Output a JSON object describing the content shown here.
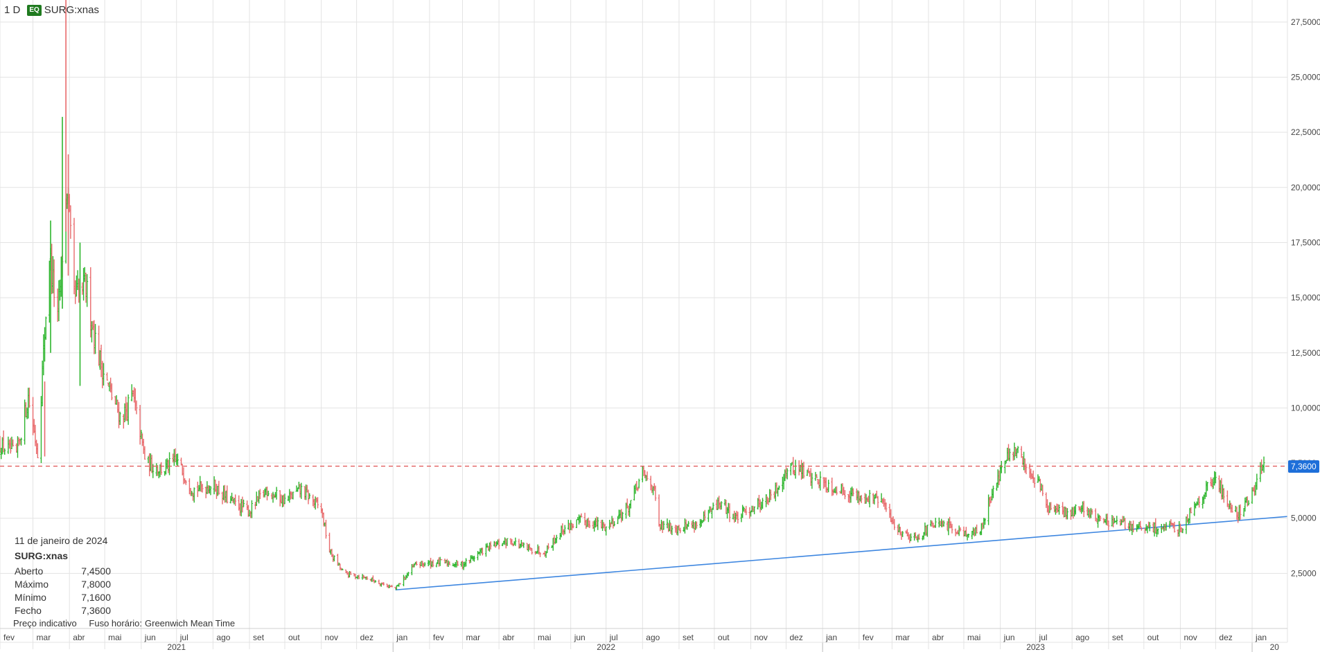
{
  "header": {
    "interval": "1 D",
    "badge": "EQ",
    "symbol": "SURG:xnas"
  },
  "info": {
    "date": "11 de janeiro de 2024",
    "symbol": "SURG:xnas",
    "rows": [
      {
        "label": "Aberto",
        "value": "7,4500"
      },
      {
        "label": "Máximo",
        "value": "7,8000"
      },
      {
        "label": "Mínimo",
        "value": "7,1600"
      },
      {
        "label": "Fecho",
        "value": "7,3600"
      }
    ]
  },
  "footer": {
    "note": "Preço indicativo",
    "tz_label": "Fuso horário:",
    "tz_value": "Greenwich Mean Time"
  },
  "colors": {
    "up": "#2db52d",
    "down": "#e8696b",
    "trendline": "#3d86e0",
    "lastprice": "#e05252",
    "grid": "#e3e3e3",
    "pricetag": "#1e6fd9"
  },
  "chart_data": {
    "type": "ohlc",
    "ylim": [
      0,
      28.5
    ],
    "yticks": [
      "2,5000",
      "5,0000",
      "7,5000",
      "10,0000",
      "12,5000",
      "15,0000",
      "17,5000",
      "20,0000",
      "22,5000",
      "25,0000",
      "27,5000"
    ],
    "ytick_values": [
      2.5,
      5,
      7.5,
      10,
      12.5,
      15,
      17.5,
      20,
      22.5,
      25,
      27.5
    ],
    "x_start": "2021-02-01",
    "x_end": "2024-01-31",
    "months": [
      {
        "label": "fev",
        "date": "2021-02-01"
      },
      {
        "label": "mar",
        "date": "2021-03-01"
      },
      {
        "label": "abr",
        "date": "2021-04-01"
      },
      {
        "label": "mai",
        "date": "2021-05-01"
      },
      {
        "label": "jun",
        "date": "2021-06-01"
      },
      {
        "label": "jul",
        "date": "2021-07-01"
      },
      {
        "label": "ago",
        "date": "2021-08-01"
      },
      {
        "label": "set",
        "date": "2021-09-01"
      },
      {
        "label": "out",
        "date": "2021-10-01"
      },
      {
        "label": "nov",
        "date": "2021-11-01"
      },
      {
        "label": "dez",
        "date": "2021-12-01"
      },
      {
        "label": "jan",
        "date": "2022-01-01"
      },
      {
        "label": "fev",
        "date": "2022-02-01"
      },
      {
        "label": "mar",
        "date": "2022-03-01"
      },
      {
        "label": "abr",
        "date": "2022-04-01"
      },
      {
        "label": "mai",
        "date": "2022-05-01"
      },
      {
        "label": "jun",
        "date": "2022-06-01"
      },
      {
        "label": "jul",
        "date": "2022-07-01"
      },
      {
        "label": "ago",
        "date": "2022-08-01"
      },
      {
        "label": "set",
        "date": "2022-09-01"
      },
      {
        "label": "out",
        "date": "2022-10-01"
      },
      {
        "label": "nov",
        "date": "2022-11-01"
      },
      {
        "label": "dez",
        "date": "2022-12-01"
      },
      {
        "label": "jan",
        "date": "2023-01-01"
      },
      {
        "label": "fev",
        "date": "2023-02-01"
      },
      {
        "label": "mar",
        "date": "2023-03-01"
      },
      {
        "label": "abr",
        "date": "2023-04-01"
      },
      {
        "label": "mai",
        "date": "2023-05-01"
      },
      {
        "label": "jun",
        "date": "2023-06-01"
      },
      {
        "label": "jul",
        "date": "2023-07-01"
      },
      {
        "label": "ago",
        "date": "2023-08-01"
      },
      {
        "label": "set",
        "date": "2023-09-01"
      },
      {
        "label": "out",
        "date": "2023-10-01"
      },
      {
        "label": "nov",
        "date": "2023-11-01"
      },
      {
        "label": "dez",
        "date": "2023-12-01"
      },
      {
        "label": "jan",
        "date": "2024-01-01"
      }
    ],
    "years": [
      {
        "label": "2021",
        "date": "2021-07-01"
      },
      {
        "label": "2022",
        "date": "2022-07-01"
      },
      {
        "label": "2023",
        "date": "2023-07-01"
      },
      {
        "label": "20",
        "date": "2024-01-20"
      }
    ],
    "year_boundaries": [
      "2022-01-01",
      "2023-01-01",
      "2024-01-01"
    ],
    "last_price": 7.36,
    "last_price_label": "7,3600",
    "trendline": [
      {
        "date": "2022-01-03",
        "value": 1.75
      },
      {
        "date": "2024-01-31",
        "value": 5.08
      }
    ],
    "price_path": [
      {
        "date": "2021-02-01",
        "value": 8.3
      },
      {
        "date": "2021-02-15",
        "value": 7.9
      },
      {
        "date": "2021-02-25",
        "value": 10.5
      },
      {
        "date": "2021-03-05",
        "value": 8.0
      },
      {
        "date": "2021-03-15",
        "value": 17.0
      },
      {
        "date": "2021-03-22",
        "value": 14.0
      },
      {
        "date": "2021-03-30",
        "value": 20.0
      },
      {
        "date": "2021-04-05",
        "value": 15.0
      },
      {
        "date": "2021-04-15",
        "value": 15.5
      },
      {
        "date": "2021-04-25",
        "value": 12.5
      },
      {
        "date": "2021-05-05",
        "value": 10.8
      },
      {
        "date": "2021-05-15",
        "value": 9.5
      },
      {
        "date": "2021-05-25",
        "value": 10.5
      },
      {
        "date": "2021-06-05",
        "value": 7.5
      },
      {
        "date": "2021-06-20",
        "value": 7.2
      },
      {
        "date": "2021-07-01",
        "value": 7.6
      },
      {
        "date": "2021-07-15",
        "value": 6.3
      },
      {
        "date": "2021-08-01",
        "value": 6.5
      },
      {
        "date": "2021-08-15",
        "value": 5.8
      },
      {
        "date": "2021-09-01",
        "value": 5.3
      },
      {
        "date": "2021-09-15",
        "value": 6.3
      },
      {
        "date": "2021-10-01",
        "value": 5.8
      },
      {
        "date": "2021-10-15",
        "value": 6.3
      },
      {
        "date": "2021-11-01",
        "value": 5.4
      },
      {
        "date": "2021-11-08",
        "value": 3.5
      },
      {
        "date": "2021-11-20",
        "value": 2.5
      },
      {
        "date": "2021-12-10",
        "value": 2.3
      },
      {
        "date": "2022-01-03",
        "value": 1.8
      },
      {
        "date": "2022-01-20",
        "value": 2.9
      },
      {
        "date": "2022-02-10",
        "value": 3.0
      },
      {
        "date": "2022-03-01",
        "value": 2.9
      },
      {
        "date": "2022-03-20",
        "value": 3.6
      },
      {
        "date": "2022-04-10",
        "value": 4.0
      },
      {
        "date": "2022-04-25",
        "value": 3.6
      },
      {
        "date": "2022-05-10",
        "value": 3.5
      },
      {
        "date": "2022-05-25",
        "value": 4.5
      },
      {
        "date": "2022-06-10",
        "value": 4.9
      },
      {
        "date": "2022-07-01",
        "value": 4.6
      },
      {
        "date": "2022-07-20",
        "value": 5.5
      },
      {
        "date": "2022-08-01",
        "value": 7.0
      },
      {
        "date": "2022-08-10",
        "value": 6.5
      },
      {
        "date": "2022-08-15",
        "value": 4.6
      },
      {
        "date": "2022-09-01",
        "value": 4.6
      },
      {
        "date": "2022-09-20",
        "value": 4.8
      },
      {
        "date": "2022-10-05",
        "value": 5.7
      },
      {
        "date": "2022-10-20",
        "value": 5.0
      },
      {
        "date": "2022-11-05",
        "value": 5.6
      },
      {
        "date": "2022-11-20",
        "value": 6.0
      },
      {
        "date": "2022-12-01",
        "value": 7.2
      },
      {
        "date": "2022-12-10",
        "value": 7.3
      },
      {
        "date": "2022-12-25",
        "value": 6.8
      },
      {
        "date": "2023-01-10",
        "value": 6.4
      },
      {
        "date": "2023-02-01",
        "value": 6.0
      },
      {
        "date": "2023-02-20",
        "value": 5.8
      },
      {
        "date": "2023-03-05",
        "value": 4.5
      },
      {
        "date": "2023-03-20",
        "value": 4.1
      },
      {
        "date": "2023-04-05",
        "value": 4.7
      },
      {
        "date": "2023-04-20",
        "value": 4.6
      },
      {
        "date": "2023-05-05",
        "value": 4.3
      },
      {
        "date": "2023-05-15",
        "value": 4.4
      },
      {
        "date": "2023-05-25",
        "value": 6.2
      },
      {
        "date": "2023-06-05",
        "value": 7.6
      },
      {
        "date": "2023-06-15",
        "value": 8.0
      },
      {
        "date": "2023-06-25",
        "value": 7.2
      },
      {
        "date": "2023-07-05",
        "value": 6.5
      },
      {
        "date": "2023-07-10",
        "value": 5.5
      },
      {
        "date": "2023-07-25",
        "value": 5.2
      },
      {
        "date": "2023-08-10",
        "value": 5.5
      },
      {
        "date": "2023-08-25",
        "value": 4.9
      },
      {
        "date": "2023-09-15",
        "value": 4.7
      },
      {
        "date": "2023-10-01",
        "value": 4.5
      },
      {
        "date": "2023-10-20",
        "value": 4.6
      },
      {
        "date": "2023-11-01",
        "value": 4.5
      },
      {
        "date": "2023-11-15",
        "value": 5.8
      },
      {
        "date": "2023-12-01",
        "value": 6.8
      },
      {
        "date": "2023-12-10",
        "value": 5.8
      },
      {
        "date": "2023-12-20",
        "value": 5.2
      },
      {
        "date": "2024-01-01",
        "value": 6.0
      },
      {
        "date": "2024-01-05",
        "value": 7.0
      },
      {
        "date": "2024-01-11",
        "value": 7.36
      }
    ],
    "spikes": [
      {
        "date": "2021-03-29",
        "high": 28.5,
        "low": 18.0
      },
      {
        "date": "2021-03-26",
        "high": 23.2,
        "low": 14.5
      },
      {
        "date": "2021-03-31",
        "high": 21.5,
        "low": 16.0
      },
      {
        "date": "2021-03-16",
        "high": 18.5,
        "low": 12.5
      },
      {
        "date": "2021-03-11",
        "high": 11.2,
        "low": 7.8
      },
      {
        "date": "2021-04-10",
        "high": 17.5,
        "low": 11.0
      }
    ]
  }
}
